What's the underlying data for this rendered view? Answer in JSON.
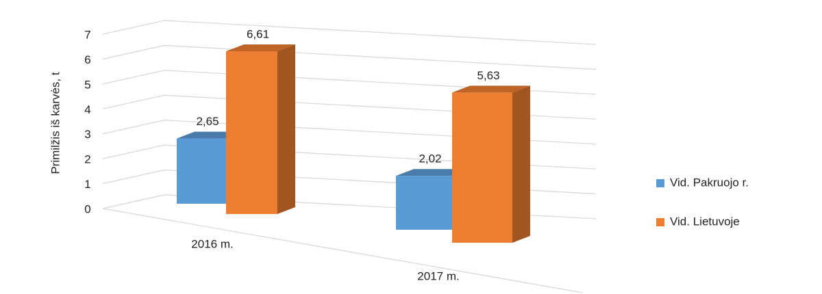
{
  "chart_data": {
    "type": "bar3d",
    "y_axis_label": "Primilžis iš karvės, t",
    "categories": [
      "2016 m.",
      "2017 m."
    ],
    "series": [
      {
        "name": "Vid. Pakruojo r.",
        "color": "#5b9bd5",
        "values": [
          2.65,
          2.02
        ],
        "value_labels": [
          "2,65",
          "2,02"
        ]
      },
      {
        "name": "Vid. Lietuvoje",
        "color": "#ed7d31",
        "values": [
          6.61,
          5.63
        ],
        "value_labels": [
          "6,61",
          "5,63"
        ]
      }
    ],
    "ylim": [
      0,
      7
    ],
    "yticks": [
      0,
      1,
      2,
      3,
      4,
      5,
      6,
      7
    ],
    "grid": true,
    "legend": "right"
  }
}
